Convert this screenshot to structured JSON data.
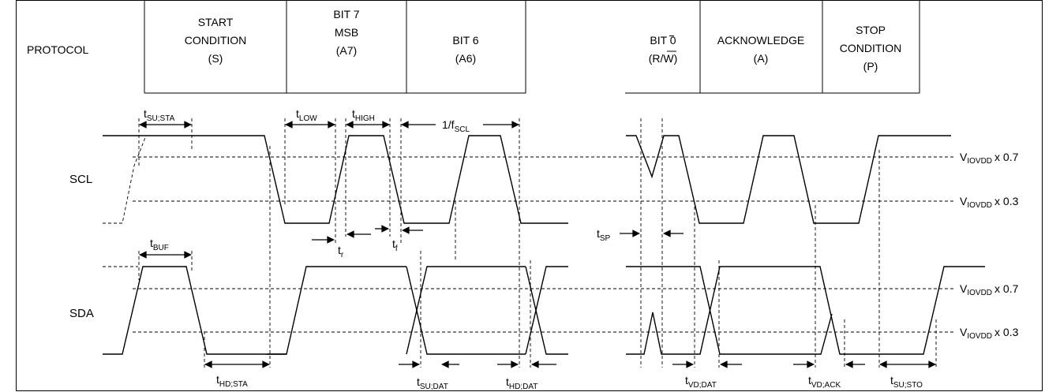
{
  "header": {
    "protocol": "PROTOCOL",
    "start": [
      "START",
      "CONDITION",
      "(S)"
    ],
    "bit7": [
      "BIT 7",
      "MSB",
      "(A7)"
    ],
    "bit6": [
      "BIT 6",
      "(A6)"
    ],
    "bit0": [
      "BIT 0",
      "(R/W)"
    ],
    "ack": [
      "ACKNOWLEDGE",
      "(A)"
    ],
    "stop": [
      "STOP",
      "CONDITION",
      "(P)"
    ]
  },
  "signals": {
    "scl": "SCL",
    "sda": "SDA"
  },
  "thresholds": {
    "v_main": "V",
    "v_sub": "IOVDD",
    "high_factor": "x 0.7",
    "low_factor": "x 0.3"
  },
  "timing": {
    "t": "t",
    "su_sta": "SU;STA",
    "low": "LOW",
    "high": "HIGH",
    "freq_prefix": "1/f",
    "freq_sub": "SCL",
    "r": "r",
    "f": "f",
    "sp": "SP",
    "buf": "BUF",
    "hd_sta": "HD;STA",
    "su_dat": "SU;DAT",
    "hd_dat": "HD;DAT",
    "vd_dat": "VD;DAT",
    "vd_ack": "VD;ACK",
    "su_sto": "SU;STO"
  }
}
